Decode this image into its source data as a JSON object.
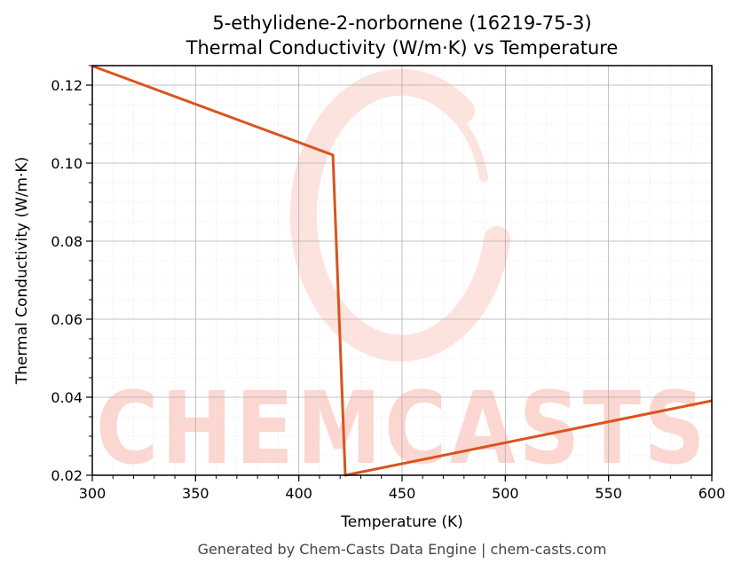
{
  "chart_data": {
    "type": "line",
    "title_line1": "5-ethylidene-2-norbornene (16219-75-3)",
    "title_line2": "Thermal Conductivity (W/m·K) vs Temperature",
    "xlabel": "Temperature (K)",
    "ylabel": "Thermal Conductivity (W/m·K)",
    "xlim": [
      300,
      600
    ],
    "ylim": [
      0.02,
      0.125
    ],
    "xticks": [
      300,
      350,
      400,
      450,
      500,
      550,
      600
    ],
    "xtick_labels": [
      "300",
      "350",
      "400",
      "450",
      "500",
      "550",
      "600"
    ],
    "yticks": [
      0.02,
      0.04,
      0.06,
      0.08,
      0.1,
      0.12
    ],
    "ytick_labels": [
      "0.02",
      "0.04",
      "0.06",
      "0.08",
      "0.10",
      "0.12"
    ],
    "grid": true,
    "series": [
      {
        "color": "#d9541e",
        "x": [
          300,
          416.5,
          422.5,
          600
        ],
        "y": [
          0.1249,
          0.1021,
          0.02,
          0.0391
        ]
      }
    ],
    "watermark": "CHEMCASTS",
    "footer": "Generated by Chem-Casts Data Engine | chem-casts.com"
  }
}
